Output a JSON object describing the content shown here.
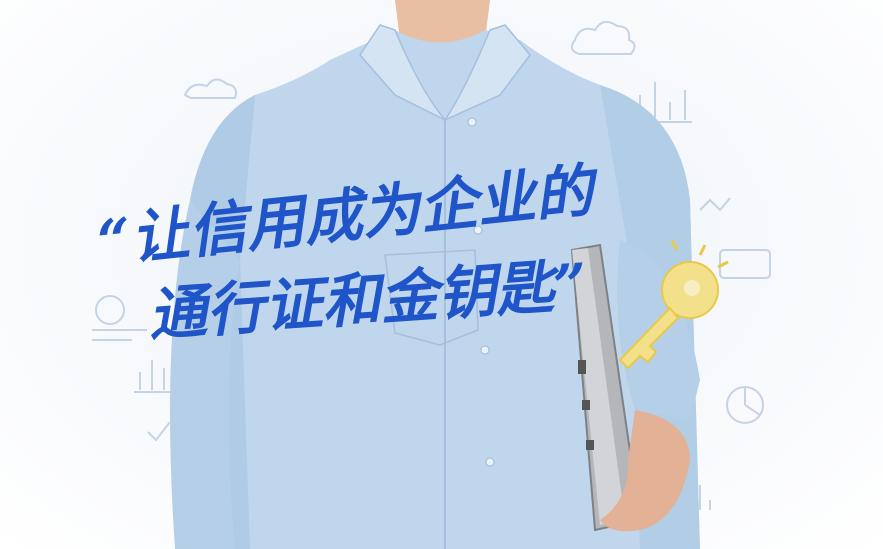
{
  "slogan": {
    "line1": "“让信用成为企业的",
    "line2": "通行证和金钥匙”"
  },
  "colors": {
    "shirt": "#bfd6ec",
    "slogan": "#1f55c8",
    "key": "#f3e08a",
    "doodle": "#9db5d3"
  },
  "icons": [
    "cloud-icon",
    "bar-chart-icon",
    "pie-chart-icon",
    "gear-icon",
    "checkmark-icon",
    "key-icon"
  ]
}
